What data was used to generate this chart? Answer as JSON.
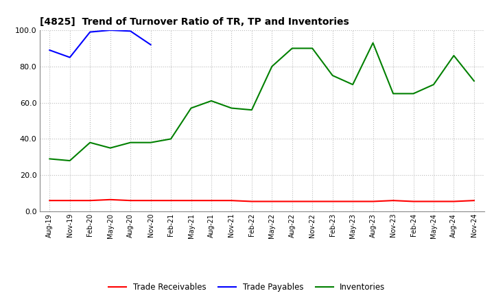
{
  "title": "[4825]  Trend of Turnover Ratio of TR, TP and Inventories",
  "x_labels": [
    "Aug-19",
    "Nov-19",
    "Feb-20",
    "May-20",
    "Aug-20",
    "Nov-20",
    "Feb-21",
    "May-21",
    "Aug-21",
    "Nov-21",
    "Feb-22",
    "May-22",
    "Aug-22",
    "Nov-22",
    "Feb-23",
    "May-23",
    "Aug-23",
    "Nov-23",
    "Feb-24",
    "May-24",
    "Aug-24",
    "Nov-24"
  ],
  "trade_receivables": [
    6.0,
    6.0,
    6.0,
    6.5,
    6.0,
    6.0,
    6.0,
    6.0,
    6.0,
    6.0,
    5.5,
    5.5,
    5.5,
    5.5,
    5.5,
    5.5,
    5.5,
    6.0,
    5.5,
    5.5,
    5.5,
    6.0
  ],
  "trade_payables": [
    89.0,
    85.0,
    99.0,
    100.0,
    99.5,
    92.0,
    null,
    null,
    null,
    null,
    null,
    null,
    null,
    null,
    null,
    null,
    null,
    null,
    null,
    null,
    null,
    null
  ],
  "inventories": [
    29.0,
    28.0,
    38.0,
    35.0,
    38.0,
    38.0,
    40.0,
    57.0,
    61.0,
    57.0,
    56.0,
    80.0,
    90.0,
    90.0,
    75.0,
    70.0,
    93.0,
    65.0,
    65.0,
    70.0,
    86.0,
    72.0
  ],
  "ylim": [
    0,
    100.0
  ],
  "yticks": [
    0.0,
    20.0,
    40.0,
    60.0,
    80.0,
    100.0
  ],
  "color_tr": "#ff0000",
  "color_tp": "#0000ff",
  "color_inv": "#008000",
  "legend_tr": "Trade Receivables",
  "legend_tp": "Trade Payables",
  "legend_inv": "Inventories",
  "bg_color": "#ffffff",
  "grid_color": "#bbbbbb"
}
